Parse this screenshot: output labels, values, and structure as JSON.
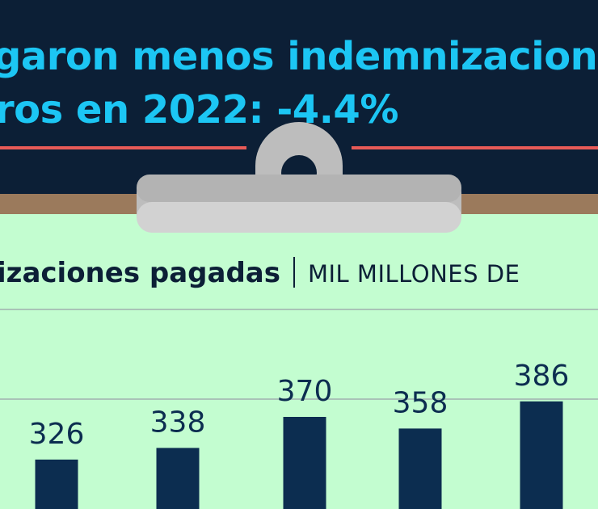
{
  "header": {
    "line1": "garon menos indemnizacion",
    "line2": "ros en 2022: -4.4%"
  },
  "subtitle": {
    "bold": "izaciones pagadas",
    "unit": "MIL MILLONES DE"
  },
  "colors": {
    "background_dark": "#0c1f36",
    "headline": "#1cc6f4",
    "rule": "#e85a57",
    "wood": "#9b7a5c",
    "board": "#c3fdd0",
    "bar": "#0c2d50",
    "clip": "#bdbdbd"
  },
  "chart_data": {
    "type": "bar",
    "categories": [
      "",
      "",
      "",
      "",
      ""
    ],
    "values": [
      326,
      338,
      370,
      358,
      386
    ],
    "data_labels": [
      "326",
      "338",
      "370",
      "358",
      "386"
    ],
    "gridlines": [
      370
    ],
    "grid": true
  }
}
